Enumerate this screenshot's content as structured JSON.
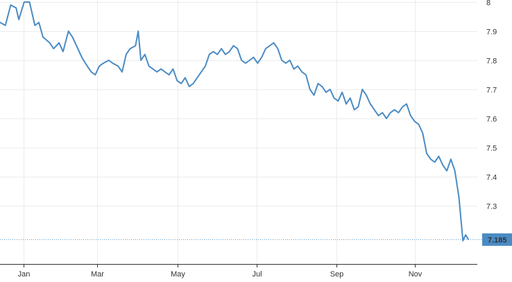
{
  "chart_data": {
    "type": "line",
    "title": "",
    "xlabel": "",
    "ylabel": "",
    "ylim": [
      7.1,
      8.0
    ],
    "y_ticks": [
      "7.3",
      "7.4",
      "7.5",
      "7.6",
      "7.7",
      "7.8",
      "7.9",
      "8"
    ],
    "x_ticks": [
      "Jan",
      "Mar",
      "May",
      "Jul",
      "Sep",
      "Nov"
    ],
    "grid": true,
    "line_color": "#4a8bc4",
    "last_value_color": "#4a8bc4",
    "last_value_label": "7.185",
    "last_value": 7.185,
    "series": [
      {
        "x": [
          0,
          1,
          2,
          3,
          4,
          5,
          6,
          7,
          8,
          9,
          10,
          11,
          12,
          13,
          14,
          15,
          16,
          17,
          18,
          19,
          20,
          21,
          22,
          23,
          24,
          25,
          26,
          27,
          28,
          29,
          30,
          31,
          32,
          33,
          34,
          35,
          36,
          37,
          38,
          39,
          40,
          41,
          42,
          43,
          44,
          45,
          46,
          47,
          48,
          49,
          50,
          51,
          52,
          53,
          54,
          55,
          56,
          57,
          58,
          59,
          60,
          61,
          62,
          63,
          64,
          65,
          66,
          67,
          68,
          69,
          70,
          71,
          72,
          73,
          74,
          75,
          76,
          77,
          78,
          79,
          80,
          81,
          82,
          83,
          84,
          85,
          86,
          87,
          88,
          89,
          90,
          91,
          92,
          93,
          94,
          95,
          96,
          97,
          98,
          99,
          100,
          101,
          102,
          103,
          104,
          105,
          106,
          107,
          108,
          109,
          110,
          111,
          112,
          113,
          114,
          115,
          116,
          117,
          118,
          119,
          120,
          121,
          122,
          123,
          124,
          125,
          126,
          127,
          128,
          129,
          130,
          131,
          132,
          133,
          134,
          135,
          136,
          137,
          138,
          139,
          140,
          141,
          142,
          143,
          144,
          145,
          146,
          147,
          148,
          149,
          150,
          151,
          152,
          153,
          154,
          155,
          156,
          157,
          158,
          159,
          160,
          161,
          162,
          163,
          164,
          165,
          166,
          167,
          168,
          169,
          170,
          171,
          172,
          173,
          174,
          175,
          176,
          177,
          178,
          179,
          180,
          181,
          182,
          183,
          184,
          185,
          186,
          187,
          188,
          189,
          190,
          191,
          192,
          193,
          194,
          195,
          196,
          197,
          198,
          199,
          200,
          201,
          202,
          203,
          204,
          205,
          206,
          207,
          208,
          209,
          210,
          211,
          212,
          213,
          214,
          215,
          216,
          217,
          218,
          219,
          220,
          221,
          222,
          223,
          224,
          225,
          226,
          227,
          228,
          229,
          230,
          231,
          232,
          233,
          234,
          235,
          236,
          237,
          238,
          239,
          240,
          241,
          242,
          243,
          244,
          245,
          246,
          247,
          248,
          249,
          250,
          251,
          252,
          253,
          254,
          255,
          256,
          257,
          258,
          259,
          260,
          261,
          262,
          263,
          264,
          265,
          266,
          267,
          268,
          269,
          270,
          271,
          272,
          273,
          274,
          275,
          276,
          277,
          278,
          279,
          280,
          281,
          282,
          283,
          284,
          285,
          286,
          287,
          288,
          289,
          290,
          291,
          292,
          293,
          294,
          295,
          296,
          297,
          298,
          299,
          300,
          301,
          302,
          303,
          304,
          305,
          306,
          307,
          308,
          309,
          310,
          311,
          312,
          313,
          314,
          315,
          316,
          317,
          318,
          319,
          320,
          321,
          322,
          323,
          324,
          325,
          326,
          327,
          328,
          329,
          330,
          331,
          332,
          333,
          334,
          335,
          336,
          337,
          338,
          339,
          340,
          341,
          342,
          343,
          344,
          345,
          346,
          347,
          348,
          349
        ],
        "x_positions_note_removed": true,
        "values_sparse_pairs": [
          [
            0,
            7.93
          ],
          [
            4,
            7.92
          ],
          [
            8,
            7.99
          ],
          [
            12,
            7.98
          ],
          [
            14,
            7.94
          ],
          [
            18,
            8.0
          ],
          [
            22,
            8.0
          ],
          [
            26,
            7.92
          ],
          [
            29,
            7.93
          ],
          [
            32,
            7.88
          ],
          [
            37,
            7.86
          ],
          [
            40,
            7.84
          ],
          [
            44,
            7.86
          ],
          [
            47,
            7.83
          ],
          [
            51,
            7.9
          ],
          [
            54,
            7.88
          ],
          [
            58,
            7.84
          ],
          [
            61,
            7.81
          ],
          [
            65,
            7.78
          ],
          [
            68,
            7.76
          ],
          [
            71,
            7.75
          ],
          [
            74,
            7.78
          ],
          [
            77,
            7.79
          ],
          [
            81,
            7.8
          ],
          [
            84,
            7.79
          ],
          [
            88,
            7.78
          ],
          [
            91,
            7.76
          ],
          [
            94,
            7.82
          ],
          [
            97,
            7.84
          ],
          [
            101,
            7.85
          ],
          [
            103,
            7.9
          ],
          [
            105,
            7.8
          ],
          [
            108,
            7.82
          ],
          [
            111,
            7.78
          ],
          [
            114,
            7.77
          ],
          [
            117,
            7.76
          ],
          [
            120,
            7.77
          ],
          [
            123,
            7.76
          ],
          [
            126,
            7.75
          ],
          [
            129,
            7.77
          ],
          [
            132,
            7.73
          ],
          [
            135,
            7.72
          ],
          [
            138,
            7.74
          ],
          [
            141,
            7.71
          ],
          [
            144,
            7.72
          ],
          [
            147,
            7.74
          ],
          [
            150,
            7.76
          ],
          [
            153,
            7.78
          ],
          [
            156,
            7.82
          ],
          [
            159,
            7.83
          ],
          [
            162,
            7.82
          ],
          [
            165,
            7.84
          ],
          [
            168,
            7.82
          ],
          [
            171,
            7.83
          ],
          [
            174,
            7.85
          ],
          [
            177,
            7.84
          ],
          [
            180,
            7.8
          ],
          [
            183,
            7.79
          ],
          [
            186,
            7.8
          ],
          [
            189,
            7.81
          ],
          [
            192,
            7.79
          ],
          [
            195,
            7.81
          ],
          [
            198,
            7.84
          ],
          [
            201,
            7.85
          ],
          [
            204,
            7.86
          ],
          [
            207,
            7.84
          ],
          [
            210,
            7.8
          ],
          [
            213,
            7.79
          ],
          [
            216,
            7.8
          ],
          [
            219,
            7.77
          ],
          [
            222,
            7.78
          ],
          [
            225,
            7.76
          ],
          [
            228,
            7.75
          ],
          [
            231,
            7.7
          ],
          [
            234,
            7.68
          ],
          [
            237,
            7.72
          ],
          [
            240,
            7.71
          ],
          [
            243,
            7.69
          ],
          [
            246,
            7.7
          ],
          [
            249,
            7.67
          ],
          [
            252,
            7.66
          ],
          [
            255,
            7.69
          ],
          [
            258,
            7.65
          ],
          [
            261,
            7.67
          ],
          [
            264,
            7.63
          ],
          [
            267,
            7.64
          ],
          [
            270,
            7.7
          ],
          [
            273,
            7.68
          ],
          [
            276,
            7.65
          ],
          [
            279,
            7.63
          ],
          [
            282,
            7.61
          ],
          [
            285,
            7.62
          ],
          [
            288,
            7.6
          ],
          [
            291,
            7.62
          ],
          [
            294,
            7.63
          ],
          [
            297,
            7.62
          ],
          [
            300,
            7.64
          ],
          [
            303,
            7.65
          ],
          [
            306,
            7.61
          ],
          [
            309,
            7.59
          ],
          [
            312,
            7.58
          ],
          [
            315,
            7.55
          ],
          [
            318,
            7.48
          ],
          [
            321,
            7.46
          ],
          [
            324,
            7.45
          ],
          [
            327,
            7.47
          ],
          [
            330,
            7.44
          ],
          [
            333,
            7.42
          ],
          [
            336,
            7.46
          ],
          [
            339,
            7.42
          ],
          [
            342,
            7.33
          ],
          [
            345,
            7.18
          ],
          [
            347,
            7.2
          ],
          [
            349,
            7.185
          ]
        ]
      }
    ]
  }
}
